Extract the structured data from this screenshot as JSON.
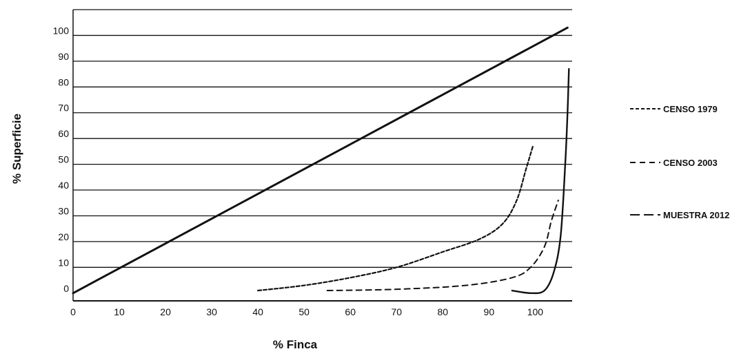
{
  "chart_data": {
    "type": "line",
    "title": "",
    "xlabel": "% Finca",
    "ylabel": "% Superficie",
    "xlim": [
      0,
      108
    ],
    "ylim": [
      -3,
      110
    ],
    "x_ticks": [
      0,
      10,
      20,
      30,
      40,
      50,
      60,
      70,
      80,
      90,
      100
    ],
    "y_ticks": [
      0,
      10,
      20,
      30,
      40,
      50,
      60,
      70,
      80,
      90,
      100
    ],
    "grid": "horizontal",
    "legend_position": "right",
    "series": [
      {
        "name": "",
        "style": "solid",
        "color": "#111111",
        "points": [
          [
            0,
            0
          ],
          [
            107,
            103
          ]
        ]
      },
      {
        "name": "CENSO 1979",
        "style": "dashed-short",
        "color": "#111111",
        "points": [
          [
            40,
            1
          ],
          [
            50,
            3
          ],
          [
            60,
            6
          ],
          [
            70,
            10
          ],
          [
            80,
            16
          ],
          [
            88,
            21
          ],
          [
            93,
            27
          ],
          [
            96,
            36
          ],
          [
            98,
            48
          ],
          [
            99.5,
            57
          ]
        ]
      },
      {
        "name": "CENSO 2003",
        "style": "dashed",
        "color": "#111111",
        "points": [
          [
            55,
            1
          ],
          [
            70,
            1.5
          ],
          [
            85,
            3
          ],
          [
            95,
            6
          ],
          [
            99,
            10
          ],
          [
            102,
            18
          ],
          [
            103.5,
            28
          ],
          [
            105,
            36
          ]
        ]
      },
      {
        "name": "MUESTRA 2012",
        "style": "solid-long",
        "color": "#111111",
        "points": [
          [
            95,
            1
          ],
          [
            99,
            0
          ],
          [
            102,
            1
          ],
          [
            104,
            8
          ],
          [
            105.5,
            22
          ],
          [
            106.5,
            50
          ],
          [
            107,
            70
          ],
          [
            107.3,
            87
          ]
        ]
      }
    ]
  }
}
